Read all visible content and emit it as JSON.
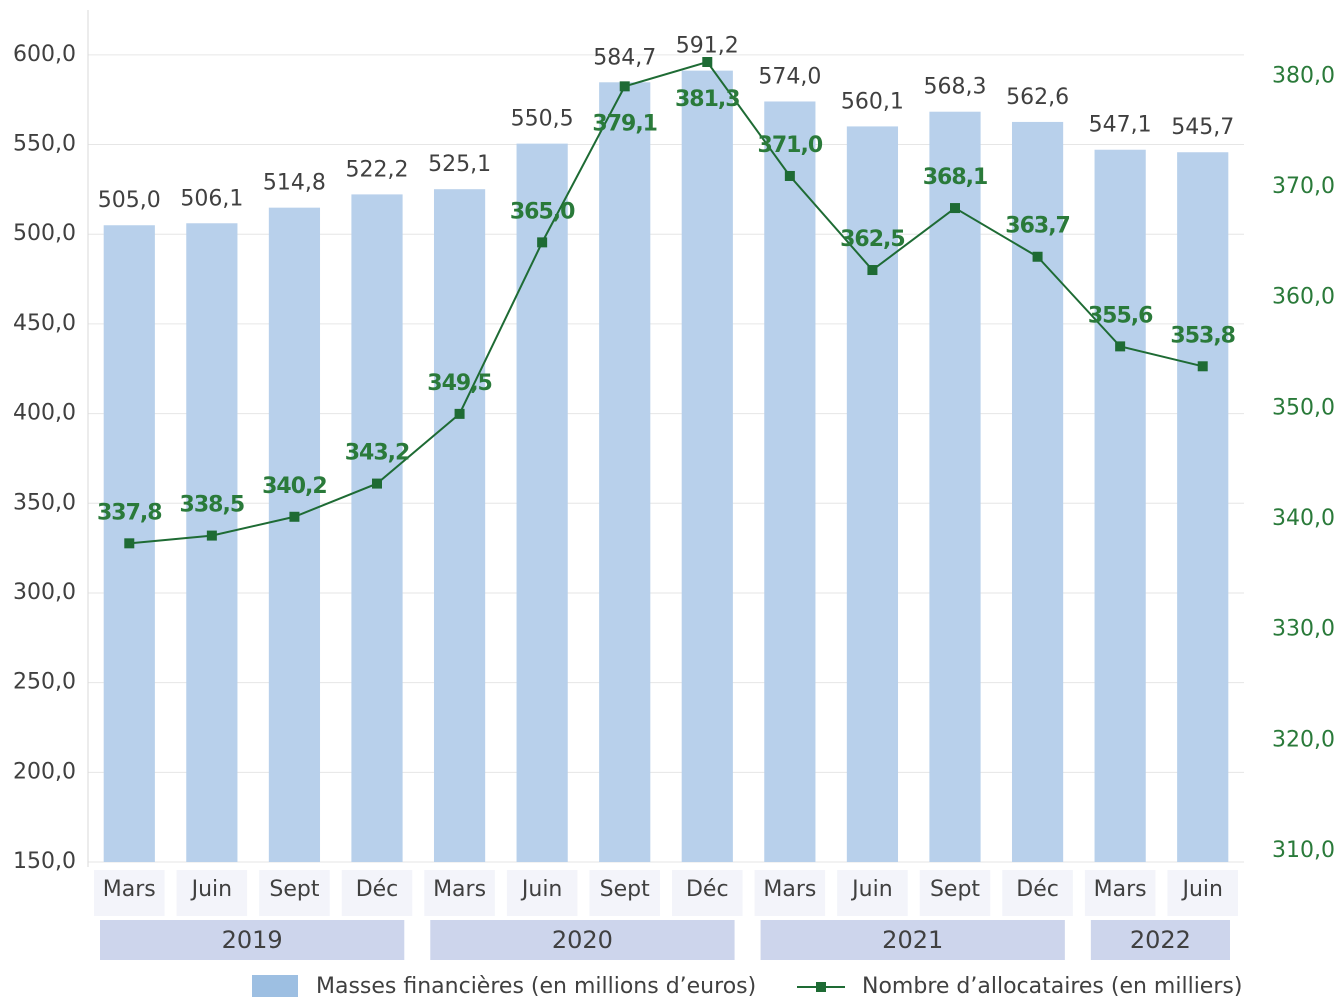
{
  "chart_data": {
    "type": "bar-line",
    "categories": [
      "Mars",
      "Juin",
      "Sept",
      "Déc",
      "Mars",
      "Juin",
      "Sept",
      "Déc",
      "Mars",
      "Juin",
      "Sept",
      "Déc",
      "Mars",
      "Juin"
    ],
    "groups": [
      {
        "label": "2019",
        "count": 4
      },
      {
        "label": "2020",
        "count": 4
      },
      {
        "label": "2021",
        "count": 4
      },
      {
        "label": "2022",
        "count": 2
      }
    ],
    "series": [
      {
        "name": "Masses financières (en millions d’euros)",
        "color": "#b8d0eb",
        "type": "bar",
        "values": [
          505.0,
          506.1,
          514.8,
          522.2,
          525.1,
          550.5,
          584.7,
          591.2,
          574.0,
          560.1,
          568.3,
          562.6,
          547.1,
          545.7
        ],
        "value_labels": [
          "505,0",
          "506,1",
          "514,8",
          "522,2",
          "525,1",
          "550,5",
          "584,7",
          "591,2",
          "574,0",
          "560,1",
          "568,3",
          "562,6",
          "547,1",
          "545,7"
        ]
      },
      {
        "name": "Nombre d’allocataires (en milliers)",
        "color": "#1e6b34",
        "type": "line",
        "axis": "y2",
        "values": [
          337.8,
          338.5,
          340.2,
          343.2,
          349.5,
          365.0,
          379.1,
          381.3,
          371.0,
          362.5,
          368.1,
          363.7,
          355.6,
          353.8
        ],
        "value_labels": [
          "337,8",
          "338,5",
          "340,2",
          "343,2",
          "349,5",
          "365,0",
          "379,1",
          "381,3",
          "371,0",
          "362,5",
          "368,1",
          "363,7",
          "355,6",
          "353,8"
        ]
      }
    ],
    "ylim": [
      150,
      625
    ],
    "yticks": [
      {
        "value": 150,
        "label": "150,0"
      },
      {
        "value": 200,
        "label": "200,0"
      },
      {
        "value": 250,
        "label": "250,0"
      },
      {
        "value": 300,
        "label": "300,0"
      },
      {
        "value": 350,
        "label": "350,0"
      },
      {
        "value": 400,
        "label": "400,0"
      },
      {
        "value": 450,
        "label": "450,0"
      },
      {
        "value": 500,
        "label": "500,0"
      },
      {
        "value": 550,
        "label": "550,0"
      },
      {
        "value": 600,
        "label": "600,0"
      }
    ],
    "y2lim": [
      309,
      386
    ],
    "y2ticks": [
      {
        "value": 310,
        "label": "310,0"
      },
      {
        "value": 320,
        "label": "320,0"
      },
      {
        "value": 330,
        "label": "330,0"
      },
      {
        "value": 340,
        "label": "340,0"
      },
      {
        "value": 350,
        "label": "350,0"
      },
      {
        "value": 360,
        "label": "360,0"
      },
      {
        "value": 370,
        "label": "370,0"
      },
      {
        "value": 380,
        "label": "380,0"
      }
    ],
    "grid": true
  }
}
